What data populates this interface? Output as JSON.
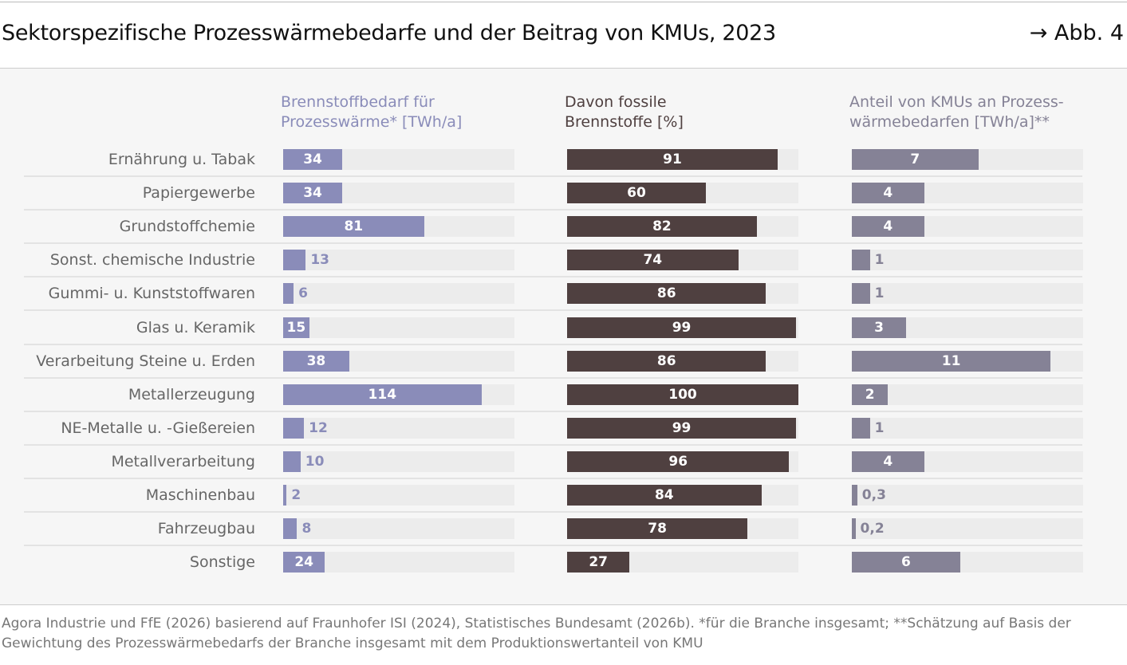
{
  "title": "Sektorspezifische Prozesswärmebedarfe und der Beitrag von KMUs, 2023",
  "figure_ref": "→ Abb. 4",
  "footer": "Agora Industrie und FfE (2026) basierend auf Fraunhofer ISI (2024), Statistisches Bundesamt (2026b). *für die Branche insgesamt; **Schätzung auf Basis der Gewichtung des Prozesswärmebedarfs der Branche insgesamt mit dem Produktionswertanteil von KMU",
  "chart_data": {
    "type": "bar",
    "orientation": "horizontal",
    "categories": [
      "Ernährung u. Tabak",
      "Papiergewerbe",
      "Grundstoffchemie",
      "Sonst. chemische Industrie",
      "Gummi- u. Kunststoffwaren",
      "Glas u. Keramik",
      "Verarbeitung Steine u. Erden",
      "Metallerzeugung",
      "NE-Metalle u. -Gießereien",
      "Metallverarbeitung",
      "Maschinenbau",
      "Fahrzeugbau",
      "Sonstige"
    ],
    "series": [
      {
        "name": "Brennstoffbedarf für Prozesswärme* [TWh/a]",
        "name_lines": [
          "Brennstoffbedarf für",
          "Prozesswärme* [TWh/a]"
        ],
        "color": "#8a8cb9",
        "xlim": [
          0,
          133
        ],
        "values": [
          34,
          34,
          81,
          13,
          6,
          15,
          38,
          114,
          12,
          10,
          2,
          8,
          24
        ],
        "labels": [
          "34",
          "34",
          "81",
          "13",
          "6",
          "15",
          "38",
          "114",
          "12",
          "10",
          "2",
          "8",
          "24"
        ]
      },
      {
        "name": "Davon fossile Brennstoffe [%]",
        "name_lines": [
          "Davon fossile",
          "Brennstoffe [%]"
        ],
        "color": "#4f4040",
        "xlim": [
          0,
          100
        ],
        "values": [
          91,
          60,
          82,
          74,
          86,
          99,
          86,
          100,
          99,
          96,
          84,
          78,
          27
        ],
        "labels": [
          "91",
          "60",
          "82",
          "74",
          "86",
          "99",
          "86",
          "100",
          "99",
          "96",
          "84",
          "78",
          "27"
        ]
      },
      {
        "name": "Anteil von KMUs an Prozesswärmebedarfen [TWh/a]**",
        "name_lines": [
          "Anteil von KMUs an Prozess-",
          "wärmebedarfen [TWh/a]**"
        ],
        "color": "#858296",
        "xlim": [
          0,
          12.8
        ],
        "values": [
          7,
          4,
          4,
          1,
          1,
          3,
          11,
          2,
          1,
          4,
          0.3,
          0.2,
          6
        ],
        "labels": [
          "7",
          "4",
          "4",
          "1",
          "1",
          "3",
          "11",
          "2",
          "1",
          "4",
          "0,3",
          "0,2",
          "6"
        ]
      }
    ],
    "track_color": "#ececec"
  }
}
